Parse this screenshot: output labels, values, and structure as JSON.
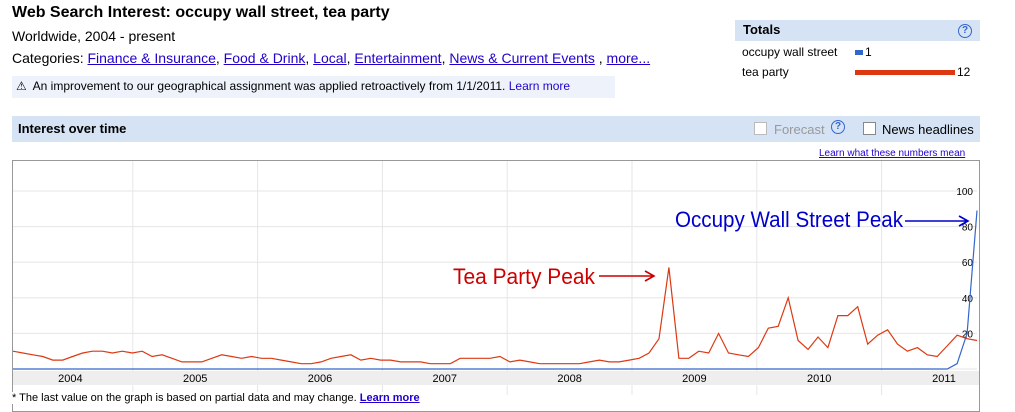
{
  "header": {
    "title": "Web Search Interest: occupy wall street, tea party",
    "subtitle": "Worldwide, 2004 - present",
    "categories_label": "Categories:",
    "categories": [
      "Finance & Insurance",
      "Food & Drink",
      "Local",
      "Entertainment",
      "News & Current Events"
    ],
    "more": "more..."
  },
  "notice": {
    "text": "An improvement to our geographical assignment was applied retroactively from 1/1/2011.",
    "link": "Learn more"
  },
  "totals": {
    "title": "Totals",
    "rows": [
      {
        "label": "occupy wall street",
        "value": "1",
        "color": "#3366cc",
        "level": 1
      },
      {
        "label": "tea party",
        "value": "12",
        "color": "#dc3912",
        "level": 12
      }
    ]
  },
  "interest": {
    "title": "Interest over time",
    "forecast": "Forecast",
    "news": "News headlines",
    "learn": "Learn what these numbers mean"
  },
  "footnote": {
    "text": "* The last value on the graph is based on partial data and may change.",
    "link": "Learn more"
  },
  "chart_data": {
    "type": "line",
    "x_tick_labels": [
      "2004",
      "2005",
      "2006",
      "2007",
      "2008",
      "2009",
      "2010",
      "2011"
    ],
    "y_tick_labels": [
      "20",
      "40",
      "60",
      "80",
      "100"
    ],
    "ylim": [
      0,
      100
    ],
    "series": [
      {
        "name": "tea party",
        "color": "#dc3912",
        "values": [
          10,
          9,
          8,
          7,
          5,
          5,
          7,
          9,
          10,
          10,
          9,
          10,
          9,
          10,
          7,
          8,
          6,
          4,
          4,
          4,
          6,
          8,
          7,
          6,
          7,
          6,
          6,
          5,
          4,
          3,
          3,
          4,
          6,
          7,
          8,
          5,
          6,
          5,
          5,
          4,
          4,
          4,
          3,
          3,
          3,
          6,
          6,
          6,
          6,
          7,
          4,
          5,
          4,
          3,
          3,
          3,
          3,
          3,
          4,
          5,
          4,
          4,
          5,
          6,
          9,
          17,
          57,
          6,
          6,
          10,
          9,
          20,
          9,
          8,
          7,
          12,
          23,
          24,
          40,
          16,
          11,
          18,
          12,
          30,
          30,
          35,
          14,
          19,
          22,
          14,
          10,
          12,
          8,
          7,
          13,
          19,
          17,
          16
        ]
      },
      {
        "name": "occupy wall street",
        "color": "#3366cc",
        "values": [
          0,
          0,
          0,
          0,
          0,
          0,
          0,
          0,
          0,
          0,
          0,
          0,
          0,
          0,
          0,
          0,
          0,
          0,
          0,
          0,
          0,
          0,
          0,
          0,
          0,
          0,
          0,
          0,
          0,
          0,
          0,
          0,
          0,
          0,
          0,
          0,
          0,
          0,
          0,
          0,
          0,
          0,
          0,
          0,
          0,
          0,
          0,
          0,
          0,
          0,
          0,
          0,
          0,
          0,
          0,
          0,
          0,
          0,
          0,
          0,
          0,
          0,
          0,
          0,
          0,
          0,
          0,
          0,
          0,
          0,
          0,
          0,
          0,
          0,
          0,
          0,
          0,
          0,
          0,
          0,
          0,
          0,
          0,
          0,
          0,
          0,
          0,
          0,
          0,
          0,
          0,
          0,
          0,
          0,
          0,
          3,
          20,
          89
        ]
      }
    ],
    "annotations": [
      {
        "text": "Tea Party Peak",
        "color": "#cc0000"
      },
      {
        "text": "Occupy Wall Street Peak",
        "color": "#0000cc"
      }
    ]
  }
}
